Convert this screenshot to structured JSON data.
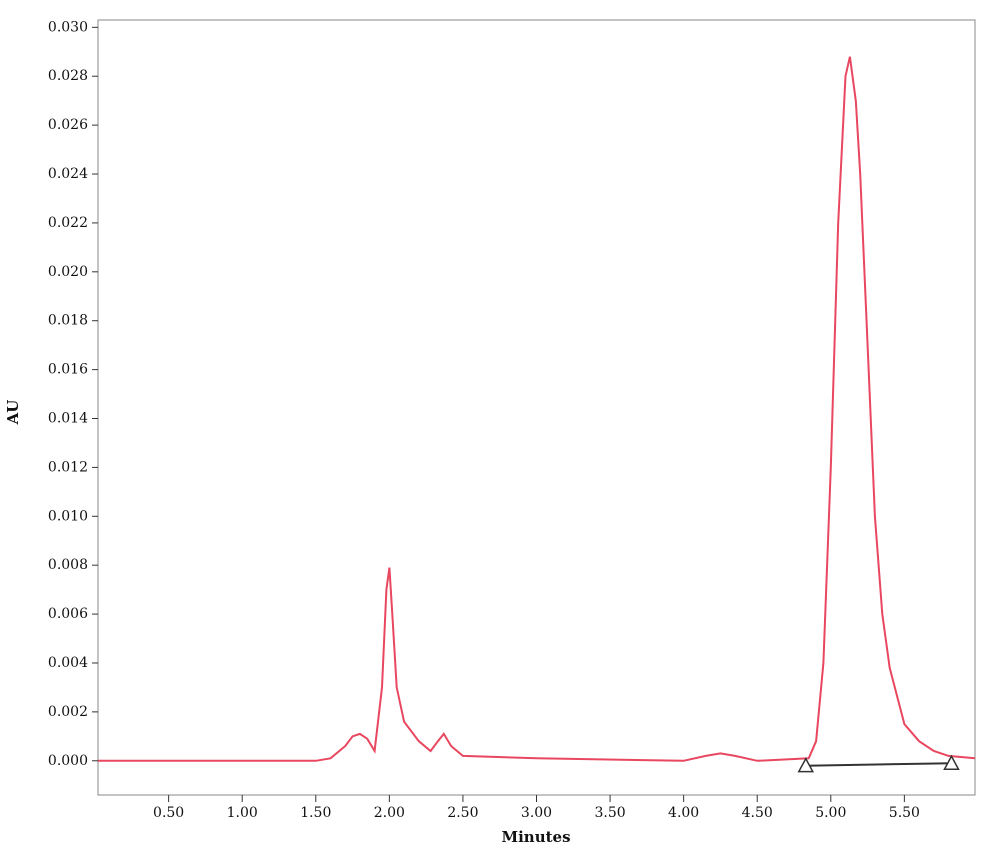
{
  "chart_data": {
    "type": "line",
    "x_label": "Minutes",
    "y_label": "AU",
    "xlim": [
      0.02,
      5.98
    ],
    "ylim": [
      -0.0014,
      0.0303
    ],
    "xticks": [
      {
        "value": 0.5,
        "label": "0.50"
      },
      {
        "value": 1.0,
        "label": "1.00"
      },
      {
        "value": 1.5,
        "label": "1.50"
      },
      {
        "value": 2.0,
        "label": "2.00"
      },
      {
        "value": 2.5,
        "label": "2.50"
      },
      {
        "value": 3.0,
        "label": "3.00"
      },
      {
        "value": 3.5,
        "label": "3.50"
      },
      {
        "value": 4.0,
        "label": "4.00"
      },
      {
        "value": 4.5,
        "label": "4.50"
      },
      {
        "value": 5.0,
        "label": "5.00"
      },
      {
        "value": 5.5,
        "label": "5.50"
      }
    ],
    "yticks": [
      {
        "value": 0,
        "label": "0.000"
      },
      {
        "value": 0.002,
        "label": "0.002"
      },
      {
        "value": 0.004,
        "label": "0.004"
      },
      {
        "value": 0.006,
        "label": "0.006"
      },
      {
        "value": 0.008,
        "label": "0.008"
      },
      {
        "value": 0.01,
        "label": "0.010"
      },
      {
        "value": 0.012,
        "label": "0.012"
      },
      {
        "value": 0.014,
        "label": "0.014"
      },
      {
        "value": 0.016,
        "label": "0.016"
      },
      {
        "value": 0.018,
        "label": "0.018"
      },
      {
        "value": 0.02,
        "label": "0.020"
      },
      {
        "value": 0.022,
        "label": "0.022"
      },
      {
        "value": 0.024,
        "label": "0.024"
      },
      {
        "value": 0.026,
        "label": "0.026"
      },
      {
        "value": 0.028,
        "label": "0.028"
      },
      {
        "value": 0.03,
        "label": "0.030"
      }
    ],
    "series": [
      {
        "color": "#e8475f",
        "marker": "none",
        "x": [
          0.02,
          1.5,
          1.6,
          1.7,
          1.75,
          1.8,
          1.85,
          1.9,
          1.95,
          1.98,
          2.0,
          2.02,
          2.05,
          2.1,
          2.2,
          2.28,
          2.33,
          2.37,
          2.42,
          2.5,
          3.0,
          4.0,
          4.15,
          4.25,
          4.35,
          4.5,
          4.85,
          4.9,
          4.95,
          5.0,
          5.05,
          5.1,
          5.13,
          5.17,
          5.2,
          5.25,
          5.3,
          5.35,
          5.4,
          5.5,
          5.6,
          5.7,
          5.8,
          5.98
        ],
        "values": [
          0.0,
          0.0,
          0.0001,
          0.0006,
          0.001,
          0.0011,
          0.0009,
          0.0004,
          0.003,
          0.007,
          0.0079,
          0.006,
          0.003,
          0.0016,
          0.0008,
          0.0004,
          0.0008,
          0.0011,
          0.0006,
          0.0002,
          0.0001,
          0.0,
          0.0002,
          0.0003,
          0.0002,
          0.0,
          0.0001,
          0.0008,
          0.004,
          0.012,
          0.022,
          0.028,
          0.0288,
          0.027,
          0.024,
          0.017,
          0.01,
          0.006,
          0.0038,
          0.0015,
          0.0008,
          0.0004,
          0.0002,
          0.0001
        ]
      },
      {
        "color": "#333333",
        "marker": "triangle",
        "x": [
          4.83,
          5.82
        ],
        "values": [
          -0.0002,
          -0.0001
        ]
      }
    ]
  }
}
